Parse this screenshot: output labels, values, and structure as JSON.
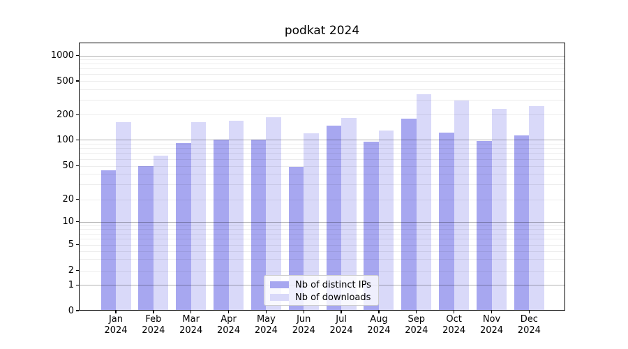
{
  "title": "podkat 2024",
  "legend": {
    "items": [
      {
        "label": "Nb of distinct IPs",
        "color": "#a7a7f0"
      },
      {
        "label": "Nb of downloads",
        "color": "#d9d9f9"
      }
    ]
  },
  "y_axis": {
    "tick_labels": [
      "1000",
      "500",
      "200",
      "100",
      "50",
      "20",
      "10",
      "5",
      "2",
      "1",
      "0"
    ]
  },
  "x_axis": {
    "tick_labels": [
      [
        "Jan",
        "2024"
      ],
      [
        "Feb",
        "2024"
      ],
      [
        "Mar",
        "2024"
      ],
      [
        "Apr",
        "2024"
      ],
      [
        "May",
        "2024"
      ],
      [
        "Jun",
        "2024"
      ],
      [
        "Jul",
        "2024"
      ],
      [
        "Aug",
        "2024"
      ],
      [
        "Sep",
        "2024"
      ],
      [
        "Oct",
        "2024"
      ],
      [
        "Nov",
        "2024"
      ],
      [
        "Dec",
        "2024"
      ]
    ]
  },
  "chart_data": {
    "type": "bar",
    "title": "podkat 2024",
    "categories": [
      "Jan 2024",
      "Feb 2024",
      "Mar 2024",
      "Apr 2024",
      "May 2024",
      "Jun 2024",
      "Jul 2024",
      "Aug 2024",
      "Sep 2024",
      "Oct 2024",
      "Nov 2024",
      "Dec 2024"
    ],
    "series": [
      {
        "name": "Nb of distinct IPs",
        "color": "#a7a7f0",
        "values": [
          44,
          50,
          92,
          100,
          100,
          49,
          147,
          95,
          180,
          121,
          97,
          112
        ]
      },
      {
        "name": "Nb of downloads",
        "color": "#d9d9f9",
        "values": [
          163,
          65,
          162,
          170,
          186,
          120,
          181,
          130,
          352,
          294,
          236,
          254
        ]
      }
    ],
    "xlabel": "",
    "ylabel": "",
    "yscale": "symlog",
    "yticks": [
      0,
      1,
      2,
      5,
      10,
      20,
      50,
      100,
      200,
      500,
      1000
    ],
    "ylim": [
      0,
      1400
    ],
    "grid": true,
    "legend_position": "lower center (inside plot)"
  }
}
